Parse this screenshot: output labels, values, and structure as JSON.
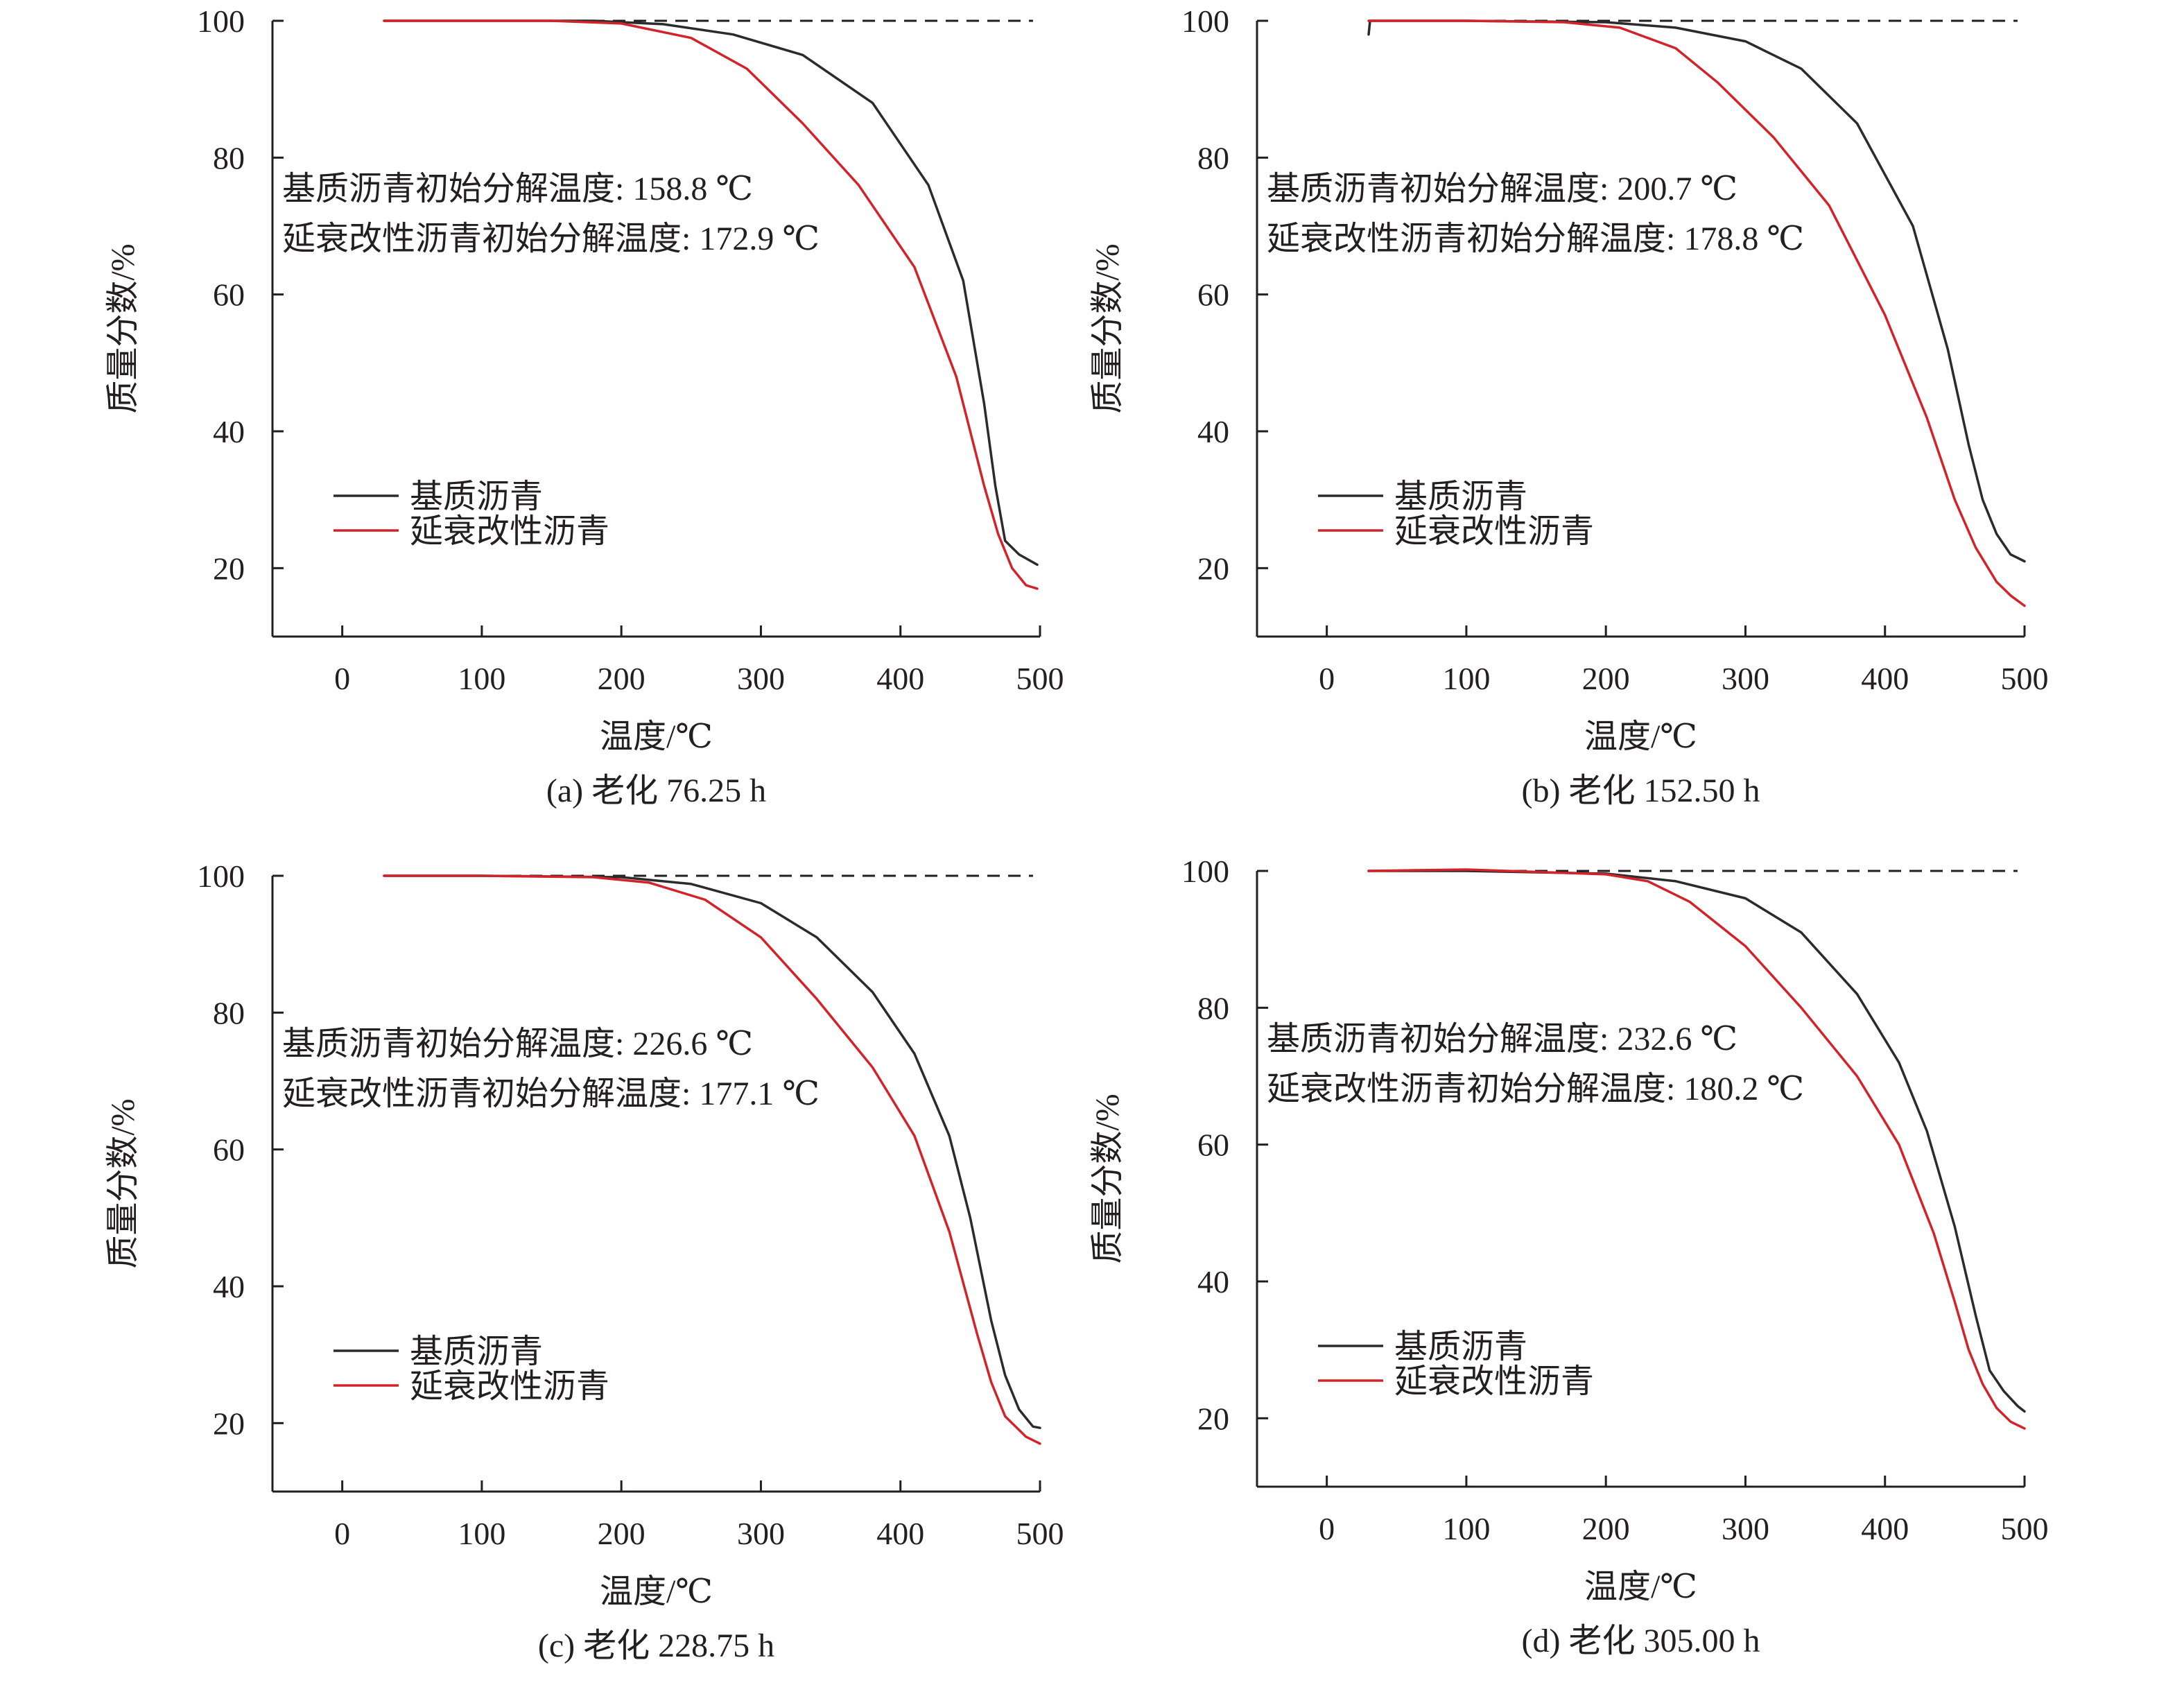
{
  "colors": {
    "base": "#2b2b2b",
    "modified": "#d2232a",
    "axis": "#231f20",
    "reference": "#231f20"
  },
  "chart_data": [
    {
      "type": "line",
      "caption": "(a) 老化 76.25 h",
      "xlabel": "温度/℃",
      "ylabel": "质量分数/%",
      "xlim": [
        -50,
        500
      ],
      "ylim": [
        10,
        100
      ],
      "xticks": [
        0,
        100,
        200,
        300,
        400,
        500
      ],
      "yticks": [
        20,
        40,
        60,
        80,
        100
      ],
      "grid": false,
      "legend_position": "lower-left",
      "annotations": [
        "基质沥青初始分解温度: 158.8 ℃",
        "延衰改性沥青初始分解温度: 172.9 ℃"
      ],
      "reference_line": {
        "y": 100,
        "x_range": [
          30,
          495
        ],
        "style": "dashed"
      },
      "series": [
        {
          "name": "基质沥青",
          "color_key": "base",
          "points": [
            [
              30,
              100
            ],
            [
              100,
              100
            ],
            [
              180,
              100
            ],
            [
              230,
              99.5
            ],
            [
              280,
              98
            ],
            [
              330,
              95
            ],
            [
              380,
              88
            ],
            [
              420,
              76
            ],
            [
              445,
              62
            ],
            [
              460,
              44
            ],
            [
              468,
              32
            ],
            [
              475,
              24
            ],
            [
              485,
              22
            ],
            [
              498,
              20.5
            ]
          ]
        },
        {
          "name": "延衰改性沥青",
          "color_key": "modified",
          "points": [
            [
              30,
              100
            ],
            [
              100,
              100
            ],
            [
              150,
              100
            ],
            [
              200,
              99.6
            ],
            [
              250,
              97.5
            ],
            [
              290,
              93
            ],
            [
              330,
              85
            ],
            [
              370,
              76
            ],
            [
              410,
              64
            ],
            [
              440,
              48
            ],
            [
              460,
              32
            ],
            [
              470,
              25
            ],
            [
              480,
              20
            ],
            [
              490,
              17.5
            ],
            [
              498,
              17
            ]
          ]
        }
      ]
    },
    {
      "type": "line",
      "caption": "(b) 老化 152.50 h",
      "xlabel": "温度/℃",
      "ylabel": "质量分数/%",
      "xlim": [
        -50,
        500
      ],
      "ylim": [
        10,
        100
      ],
      "xticks": [
        0,
        100,
        200,
        300,
        400,
        500
      ],
      "yticks": [
        20,
        40,
        60,
        80,
        100
      ],
      "grid": false,
      "legend_position": "lower-left",
      "annotations": [
        "基质沥青初始分解温度: 200.7 ℃",
        "延衰改性沥青初始分解温度: 178.8 ℃"
      ],
      "reference_line": {
        "y": 100,
        "x_range": [
          30,
          495
        ],
        "style": "dashed"
      },
      "series": [
        {
          "name": "基质沥青",
          "color_key": "base",
          "points": [
            [
              30,
              98
            ],
            [
              31,
              100
            ],
            [
              100,
              100
            ],
            [
              200,
              99.8
            ],
            [
              250,
              99
            ],
            [
              300,
              97
            ],
            [
              340,
              93
            ],
            [
              380,
              85
            ],
            [
              420,
              70
            ],
            [
              445,
              52
            ],
            [
              460,
              38
            ],
            [
              470,
              30
            ],
            [
              480,
              25
            ],
            [
              490,
              22
            ],
            [
              500,
              21
            ]
          ]
        },
        {
          "name": "延衰改性沥青",
          "color_key": "modified",
          "points": [
            [
              30,
              100
            ],
            [
              100,
              100
            ],
            [
              170,
              99.8
            ],
            [
              210,
              99
            ],
            [
              250,
              96
            ],
            [
              280,
              91
            ],
            [
              320,
              83
            ],
            [
              360,
              73
            ],
            [
              400,
              57
            ],
            [
              430,
              42
            ],
            [
              450,
              30
            ],
            [
              465,
              23
            ],
            [
              480,
              18
            ],
            [
              490,
              16
            ],
            [
              500,
              14.5
            ]
          ]
        }
      ]
    },
    {
      "type": "line",
      "caption": "(c) 老化 228.75 h",
      "xlabel": "温度/℃",
      "ylabel": "质量分数/%",
      "xlim": [
        -50,
        500
      ],
      "ylim": [
        10,
        100
      ],
      "xticks": [
        0,
        100,
        200,
        300,
        400,
        500
      ],
      "yticks": [
        20,
        40,
        60,
        80,
        100
      ],
      "grid": false,
      "legend_position": "lower-left",
      "annotations": [
        "基质沥青初始分解温度: 226.6 ℃",
        "延衰改性沥青初始分解温度: 177.1 ℃"
      ],
      "reference_line": {
        "y": 100,
        "x_range": [
          30,
          495
        ],
        "style": "dashed"
      },
      "series": [
        {
          "name": "基质沥青",
          "color_key": "base",
          "points": [
            [
              30,
              100
            ],
            [
              100,
              100
            ],
            [
              200,
              99.8
            ],
            [
              250,
              98.8
            ],
            [
              300,
              96
            ],
            [
              340,
              91
            ],
            [
              380,
              83
            ],
            [
              410,
              74
            ],
            [
              435,
              62
            ],
            [
              450,
              50
            ],
            [
              465,
              35
            ],
            [
              475,
              27
            ],
            [
              485,
              22
            ],
            [
              495,
              19.5
            ],
            [
              500,
              19.3
            ]
          ]
        },
        {
          "name": "延衰改性沥青",
          "color_key": "modified",
          "points": [
            [
              30,
              100
            ],
            [
              100,
              100
            ],
            [
              180,
              99.8
            ],
            [
              220,
              99
            ],
            [
              260,
              96.5
            ],
            [
              300,
              91
            ],
            [
              340,
              82
            ],
            [
              380,
              72
            ],
            [
              410,
              62
            ],
            [
              435,
              48
            ],
            [
              455,
              33
            ],
            [
              465,
              26
            ],
            [
              475,
              21
            ],
            [
              490,
              18
            ],
            [
              500,
              17
            ]
          ]
        }
      ]
    },
    {
      "type": "line",
      "caption": "(d) 老化 305.00 h",
      "xlabel": "温度/℃",
      "ylabel": "质量分数/%",
      "xlim": [
        -50,
        500
      ],
      "ylim": [
        10,
        100
      ],
      "xticks": [
        0,
        100,
        200,
        300,
        400,
        500
      ],
      "yticks": [
        20,
        40,
        60,
        80,
        100
      ],
      "grid": false,
      "legend_position": "lower-left",
      "annotations": [
        "基质沥青初始分解温度: 232.6 ℃",
        "延衰改性沥青初始分解温度: 180.2 ℃"
      ],
      "reference_line": {
        "y": 100,
        "x_range": [
          30,
          495
        ],
        "style": "dashed"
      },
      "series": [
        {
          "name": "基质沥青",
          "color_key": "base",
          "points": [
            [
              30,
              100
            ],
            [
              100,
              100
            ],
            [
              200,
              99.6
            ],
            [
              250,
              98.5
            ],
            [
              300,
              96
            ],
            [
              340,
              91
            ],
            [
              380,
              82
            ],
            [
              410,
              72
            ],
            [
              430,
              62
            ],
            [
              450,
              48
            ],
            [
              465,
              35
            ],
            [
              475,
              27
            ],
            [
              485,
              24
            ],
            [
              495,
              21.8
            ],
            [
              500,
              21
            ]
          ]
        },
        {
          "name": "延衰改性沥青",
          "color_key": "modified",
          "points": [
            [
              30,
              100
            ],
            [
              100,
              100.2
            ],
            [
              200,
              99.5
            ],
            [
              230,
              98.5
            ],
            [
              260,
              95.5
            ],
            [
              300,
              89
            ],
            [
              340,
              80
            ],
            [
              380,
              70
            ],
            [
              410,
              60
            ],
            [
              435,
              47
            ],
            [
              450,
              37
            ],
            [
              460,
              30
            ],
            [
              470,
              25
            ],
            [
              480,
              21.5
            ],
            [
              490,
              19.5
            ],
            [
              500,
              18.5
            ]
          ]
        }
      ]
    }
  ]
}
